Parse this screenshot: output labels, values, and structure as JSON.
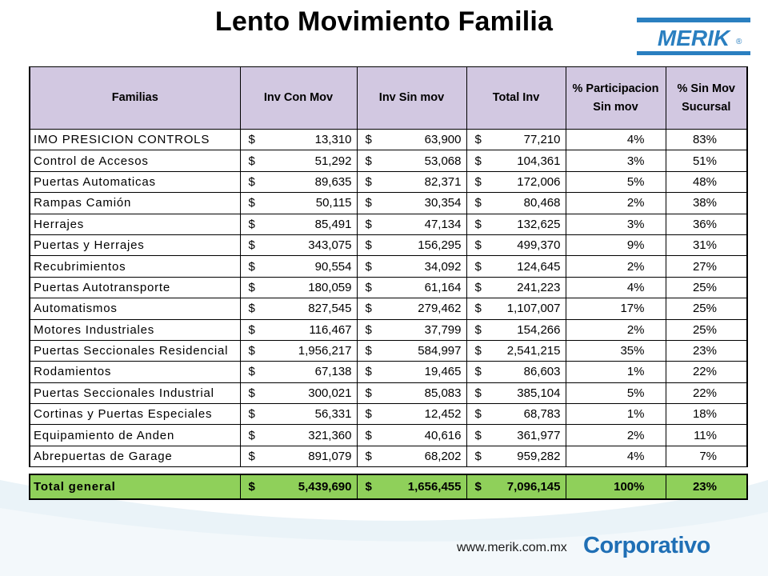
{
  "title": "Lento Movimiento Familia",
  "logo": {
    "text": "MERIK",
    "mark": "®"
  },
  "footer": {
    "url": "www.merik.com.mx",
    "brand": "Corporativo"
  },
  "colors": {
    "header_bg": "#d2c8e1",
    "total_bg": "#8fd05a",
    "brand_blue": "#1f6fb5",
    "swoosh": "#e8f2f8"
  },
  "table": {
    "headers": [
      "Familias",
      "Inv Con Mov",
      "Inv Sin mov",
      "Total Inv",
      "% Participacion Sin mov",
      "% Sin Mov Sucursal"
    ],
    "currency": "$",
    "rows": [
      {
        "familia": "IMO PRESICION CONTROLS",
        "con_mov": "13,310",
        "sin_mov": "63,900",
        "total": "77,210",
        "part": "4%",
        "sucursal": "83%"
      },
      {
        "familia": "Control de Accesos",
        "con_mov": "51,292",
        "sin_mov": "53,068",
        "total": "104,361",
        "part": "3%",
        "sucursal": "51%"
      },
      {
        "familia": "Puertas Automaticas",
        "con_mov": "89,635",
        "sin_mov": "82,371",
        "total": "172,006",
        "part": "5%",
        "sucursal": "48%"
      },
      {
        "familia": "Rampas Camión",
        "con_mov": "50,115",
        "sin_mov": "30,354",
        "total": "80,468",
        "part": "2%",
        "sucursal": "38%"
      },
      {
        "familia": "Herrajes",
        "con_mov": "85,491",
        "sin_mov": "47,134",
        "total": "132,625",
        "part": "3%",
        "sucursal": "36%"
      },
      {
        "familia": "Puertas y Herrajes",
        "con_mov": "343,075",
        "sin_mov": "156,295",
        "total": "499,370",
        "part": "9%",
        "sucursal": "31%"
      },
      {
        "familia": "Recubrimientos",
        "con_mov": "90,554",
        "sin_mov": "34,092",
        "total": "124,645",
        "part": "2%",
        "sucursal": "27%"
      },
      {
        "familia": "Puertas Autotransporte",
        "con_mov": "180,059",
        "sin_mov": "61,164",
        "total": "241,223",
        "part": "4%",
        "sucursal": "25%"
      },
      {
        "familia": "Automatismos",
        "con_mov": "827,545",
        "sin_mov": "279,462",
        "total": "1,107,007",
        "part": "17%",
        "sucursal": "25%"
      },
      {
        "familia": "Motores Industriales",
        "con_mov": "116,467",
        "sin_mov": "37,799",
        "total": "154,266",
        "part": "2%",
        "sucursal": "25%"
      },
      {
        "familia": "Puertas Seccionales Residencial",
        "con_mov": "1,956,217",
        "sin_mov": "584,997",
        "total": "2,541,215",
        "part": "35%",
        "sucursal": "23%"
      },
      {
        "familia": "Rodamientos",
        "con_mov": "67,138",
        "sin_mov": "19,465",
        "total": "86,603",
        "part": "1%",
        "sucursal": "22%"
      },
      {
        "familia": "Puertas Seccionales Industrial",
        "con_mov": "300,021",
        "sin_mov": "85,083",
        "total": "385,104",
        "part": "5%",
        "sucursal": "22%"
      },
      {
        "familia": "Cortinas y Puertas Especiales",
        "con_mov": "56,331",
        "sin_mov": "12,452",
        "total": "68,783",
        "part": "1%",
        "sucursal": "18%"
      },
      {
        "familia": "Equipamiento de Anden",
        "con_mov": "321,360",
        "sin_mov": "40,616",
        "total": "361,977",
        "part": "2%",
        "sucursal": "11%"
      },
      {
        "familia": "Abrepuertas de Garage",
        "con_mov": "891,079",
        "sin_mov": "68,202",
        "total": "959,282",
        "part": "4%",
        "sucursal": "7%"
      }
    ],
    "total": {
      "label": "Total general",
      "con_mov": "5,439,690",
      "sin_mov": "1,656,455",
      "total": "7,096,145",
      "part": "100%",
      "sucursal": "23%"
    }
  }
}
